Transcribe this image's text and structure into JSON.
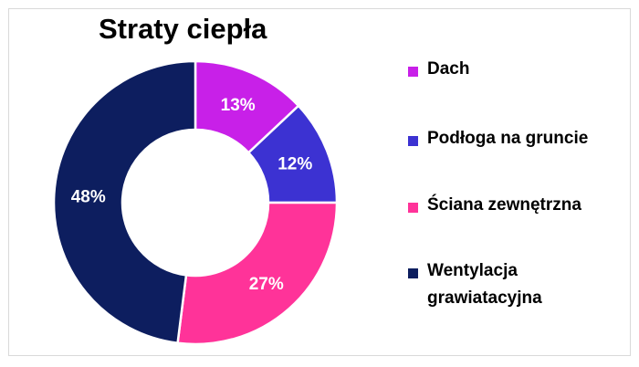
{
  "chart_data": {
    "type": "pie",
    "title": "Straty ciepła",
    "categories": [
      "Dach",
      "Podłoga na gruncie",
      "Ściana zewnętrzna",
      "Wentylacja grawiatacyjna"
    ],
    "values": [
      13,
      12,
      27,
      48
    ],
    "labels": [
      "13%",
      "12%",
      "27%",
      "48%"
    ],
    "colors": [
      "#c820e8",
      "#3c32d2",
      "#ff3399",
      "#0d1e5f"
    ],
    "donut": true,
    "legend_position": "right"
  }
}
